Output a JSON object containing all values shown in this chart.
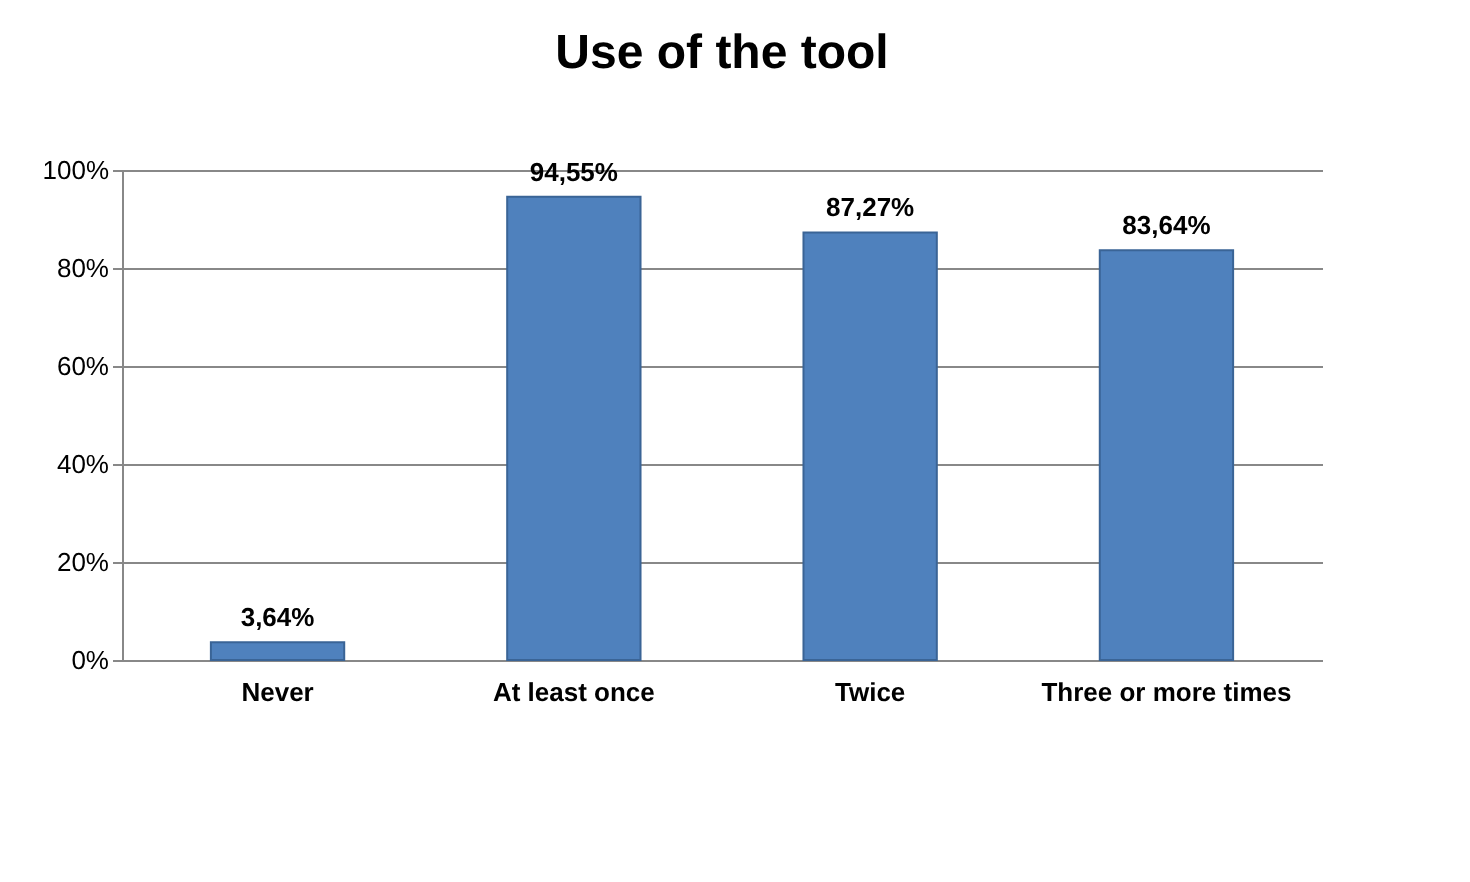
{
  "chart_data": {
    "type": "bar",
    "title": "Use of the tool",
    "categories": [
      "Never",
      "At least once",
      "Twice",
      "Three or more times"
    ],
    "values": [
      3.64,
      94.55,
      87.27,
      83.64
    ],
    "color": "#4f81bd",
    "value_labels": [
      "3,64%",
      "94,55%",
      "87,27%",
      "83,64%"
    ],
    "ylim": [
      0,
      100
    ],
    "yticks": [
      {
        "value": 0,
        "label": "0%"
      },
      {
        "value": 20,
        "label": "20%"
      },
      {
        "value": 40,
        "label": "40%"
      },
      {
        "value": 60,
        "label": "60%"
      },
      {
        "value": 80,
        "label": "80%"
      },
      {
        "value": 100,
        "label": "100%"
      }
    ],
    "grid": "y"
  }
}
